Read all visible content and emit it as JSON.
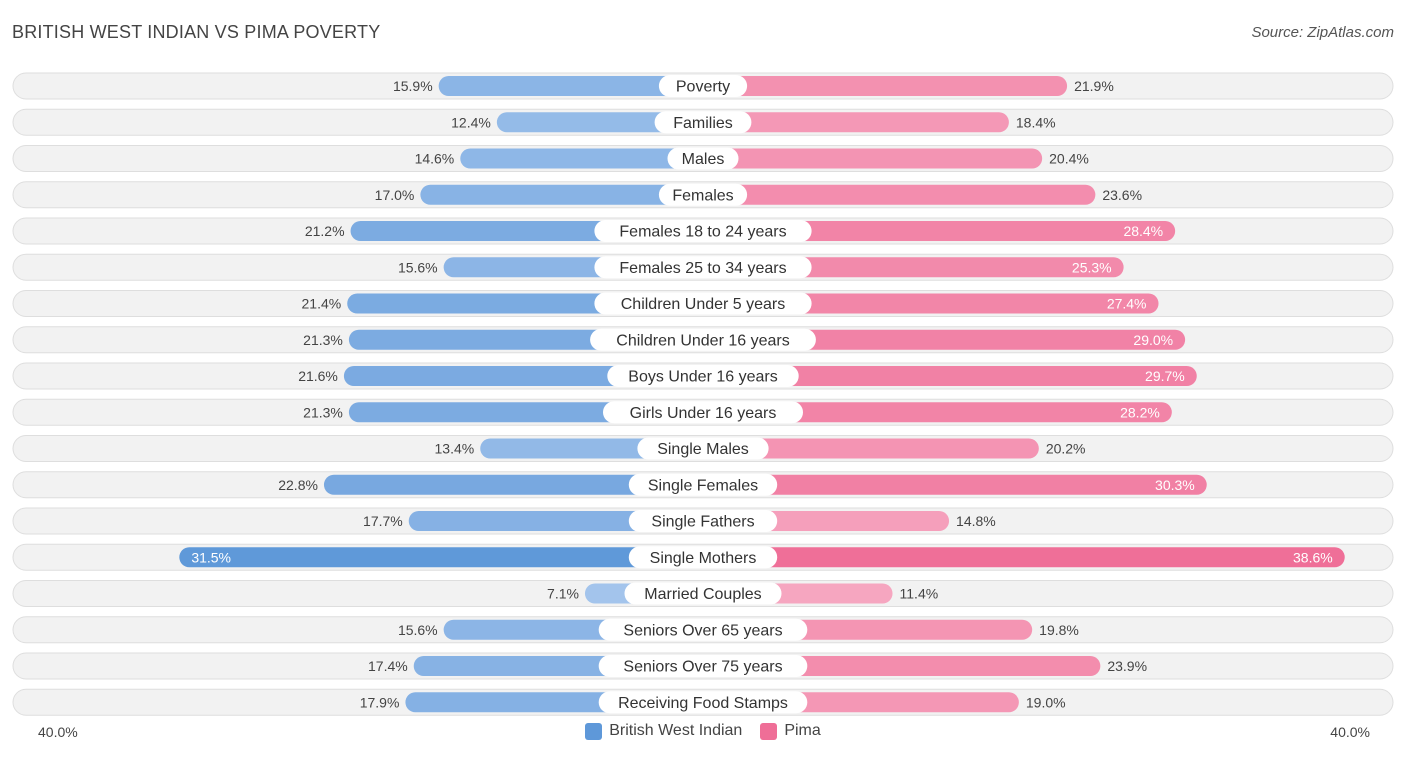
{
  "title": "BRITISH WEST INDIAN VS PIMA POVERTY",
  "source": "Source: ZipAtlas.com",
  "axis": {
    "left_label": "40.0%",
    "right_label": "40.0%"
  },
  "legend": {
    "left": "British West Indian",
    "right": "Pima"
  },
  "colors": {
    "left_light": "#a9c8ee",
    "left_dark": "#5e98d9",
    "right_light": "#f6a9c2",
    "right_dark": "#ef6e97",
    "row_bg": "#f2f2f2",
    "row_border": "#dedede"
  },
  "chart_data": {
    "type": "bar",
    "orientation": "horizontal-diverging",
    "title": "BRITISH WEST INDIAN VS PIMA POVERTY",
    "xlim": [
      -40,
      40
    ],
    "unit": "%",
    "categories": [
      "Poverty",
      "Families",
      "Males",
      "Females",
      "Females 18 to 24 years",
      "Females 25 to 34 years",
      "Children Under 5 years",
      "Children Under 16 years",
      "Boys Under 16 years",
      "Girls Under 16 years",
      "Single Males",
      "Single Females",
      "Single Fathers",
      "Single Mothers",
      "Married Couples",
      "Seniors Over 65 years",
      "Seniors Over 75 years",
      "Receiving Food Stamps"
    ],
    "series": [
      {
        "name": "British West Indian",
        "side": "left",
        "values": [
          15.9,
          12.4,
          14.6,
          17.0,
          21.2,
          15.6,
          21.4,
          21.3,
          21.6,
          21.3,
          13.4,
          22.8,
          17.7,
          31.5,
          7.1,
          15.6,
          17.4,
          17.9
        ],
        "labels": [
          "15.9%",
          "12.4%",
          "14.6%",
          "17.0%",
          "21.2%",
          "15.6%",
          "21.4%",
          "21.3%",
          "21.6%",
          "21.3%",
          "13.4%",
          "22.8%",
          "17.7%",
          "31.5%",
          "7.1%",
          "15.6%",
          "17.4%",
          "17.9%"
        ]
      },
      {
        "name": "Pima",
        "side": "right",
        "values": [
          21.9,
          18.4,
          20.4,
          23.6,
          28.4,
          25.3,
          27.4,
          29.0,
          29.7,
          28.2,
          20.2,
          30.3,
          14.8,
          38.6,
          11.4,
          19.8,
          23.9,
          19.0
        ],
        "labels": [
          "21.9%",
          "18.4%",
          "20.4%",
          "23.6%",
          "28.4%",
          "25.3%",
          "27.4%",
          "29.0%",
          "29.7%",
          "28.2%",
          "20.2%",
          "30.3%",
          "14.8%",
          "38.6%",
          "11.4%",
          "19.8%",
          "23.9%",
          "19.0%"
        ]
      }
    ]
  }
}
